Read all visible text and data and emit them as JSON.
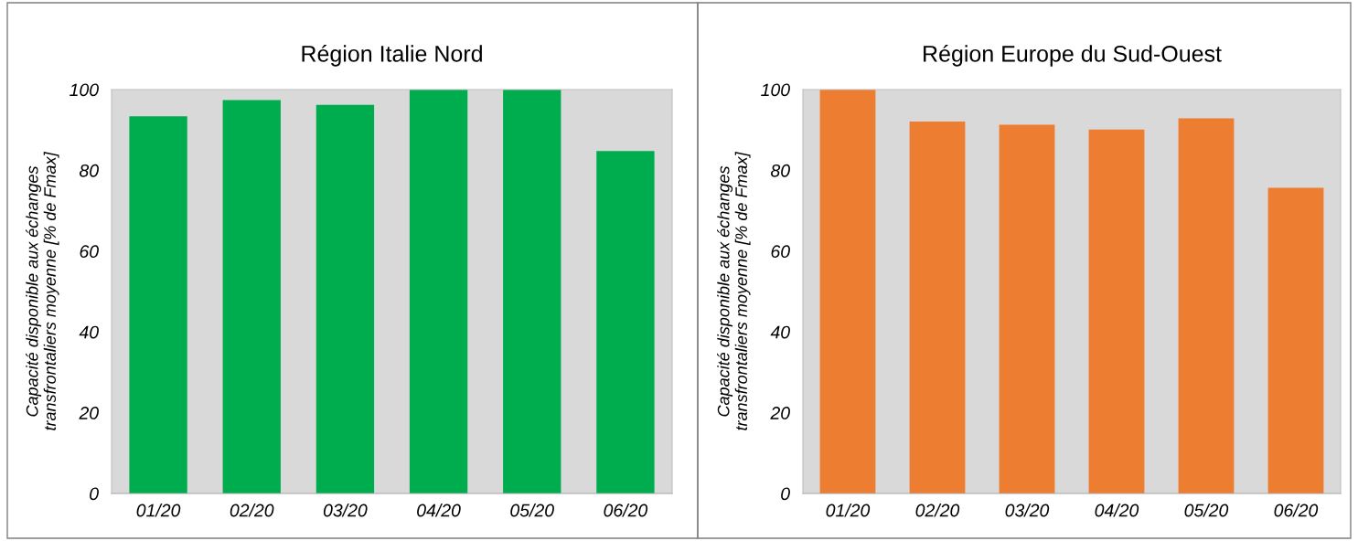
{
  "chart_data": [
    {
      "type": "bar",
      "title": "Région Italie Nord",
      "ylabel": "Capacité disponible aux échanges\ntransfrontaliers moyenne [% de Fmax]",
      "categories": [
        "01/20",
        "02/20",
        "03/20",
        "04/20",
        "05/20",
        "06/20"
      ],
      "values": [
        93.4,
        97.4,
        96.2,
        100,
        100,
        84.8
      ],
      "color": "#00ad4e",
      "ylim": [
        0,
        100
      ],
      "yticks": [
        0,
        20,
        40,
        60,
        80,
        100
      ],
      "grid": false,
      "legend": false
    },
    {
      "type": "bar",
      "title": "Région Europe du Sud-Ouest",
      "ylabel": "Capacité disponible aux échanges\ntransfrontaliers moyenne [% de Fmax]",
      "categories": [
        "01/20",
        "02/20",
        "03/20",
        "04/20",
        "05/20",
        "06/20"
      ],
      "values": [
        100,
        92.1,
        91.3,
        90.1,
        92.9,
        75.7
      ],
      "color": "#ed7d31",
      "ylim": [
        0,
        100
      ],
      "yticks": [
        0,
        20,
        40,
        60,
        80,
        100
      ],
      "grid": false,
      "legend": false
    }
  ]
}
